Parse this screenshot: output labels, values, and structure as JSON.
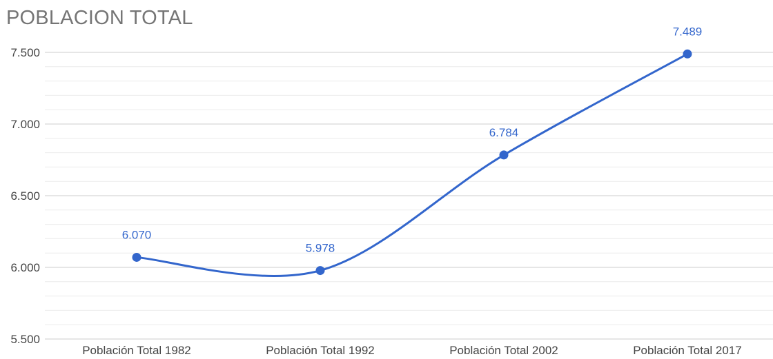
{
  "chart_data": {
    "type": "line",
    "title": "POBLACION TOTAL",
    "categories": [
      "Población Total 1982",
      "Población Total 1992",
      "Población Total 2002",
      "Población Total 2017"
    ],
    "series": [
      {
        "values": [
          6070,
          5978,
          6784,
          7489
        ],
        "data_labels": [
          "6.070",
          "5.978",
          "6.784",
          "7.489"
        ]
      }
    ],
    "ylim": [
      5500,
      7500
    ],
    "y_ticks": [
      5500,
      6000,
      6500,
      7000,
      7500
    ],
    "y_tick_labels": [
      "5.500",
      "6.000",
      "6.500",
      "7.000",
      "7.500"
    ],
    "xlabel": "",
    "ylabel": "",
    "grid": true,
    "line_style": "smooth",
    "legend": "none",
    "colors": {
      "series": "#3366cc",
      "major_grid": "#cccccc",
      "minor_grid": "#ebebeb",
      "title": "#757575",
      "tick_label": "#444444"
    }
  }
}
